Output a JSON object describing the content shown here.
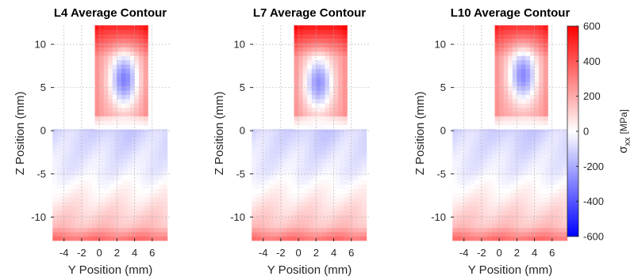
{
  "chart_data": {
    "type": "heatmap",
    "panels": [
      {
        "title": "L4 Average Contour",
        "hot_spot": {
          "y": 2.8,
          "z": 6.0,
          "value": -220
        },
        "top_value": 520
      },
      {
        "title": "L7 Average Contour",
        "hot_spot": {
          "y": 2.3,
          "z": 5.6,
          "value": -180
        },
        "top_value": 560
      },
      {
        "title": "L10 Average Contour",
        "hot_spot": {
          "y": 2.7,
          "z": 6.5,
          "value": -200
        },
        "top_value": 500
      }
    ],
    "xlabel": "Y Position (mm)",
    "ylabel": "Z Position (mm)",
    "xticks": [
      "-4",
      "-2",
      "0",
      "2",
      "4",
      "6"
    ],
    "xtick_values": [
      -4,
      -2,
      0,
      2,
      4,
      6
    ],
    "yticks": [
      "10",
      "5",
      "0",
      "-5",
      "-10"
    ],
    "ytick_values": [
      10,
      5,
      0,
      -5,
      -10
    ],
    "xlim": [
      -5.5,
      8
    ],
    "ylim": [
      -12.8,
      12.2
    ],
    "wall_y_range": [
      -0.5,
      5.5
    ],
    "base_y_range": [
      -5.3,
      7.7
    ],
    "base_z_range": [
      -12.7,
      0.2
    ],
    "wall_z_range": [
      0.2,
      12.2
    ],
    "grid": true,
    "colorbar": {
      "label": "σ",
      "label_subscript": "xx",
      "label_unit": "[MPa]",
      "range": [
        -600,
        600
      ],
      "ticks": [
        "600",
        "400",
        "200",
        "0",
        "-200",
        "-400",
        "-600"
      ],
      "tick_values": [
        600,
        400,
        200,
        0,
        -200,
        -400,
        -600
      ],
      "colors": [
        "#0000ff",
        "#ffffff",
        "#ff0000"
      ]
    }
  }
}
